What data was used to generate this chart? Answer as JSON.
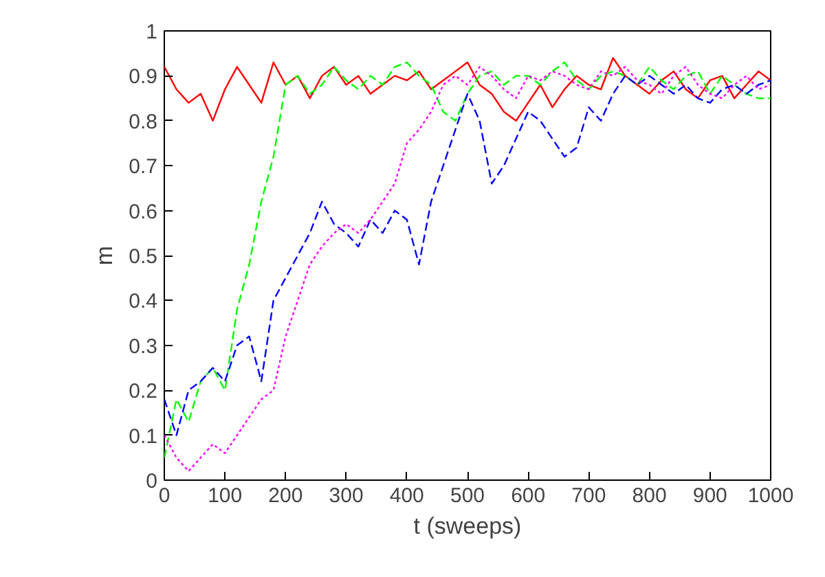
{
  "chart_data": {
    "type": "line",
    "xlabel": "t (sweeps)",
    "ylabel": "m",
    "x": [
      0,
      20,
      40,
      60,
      80,
      100,
      120,
      140,
      160,
      180,
      200,
      220,
      240,
      260,
      280,
      300,
      320,
      340,
      360,
      380,
      400,
      420,
      440,
      460,
      480,
      500,
      520,
      540,
      560,
      580,
      600,
      620,
      640,
      660,
      680,
      700,
      720,
      740,
      760,
      780,
      800,
      820,
      840,
      860,
      880,
      900,
      920,
      940,
      960,
      980,
      1000
    ],
    "series": [
      {
        "color": "#ff0000",
        "line_style": "solid",
        "values": [
          0.92,
          0.87,
          0.84,
          0.86,
          0.8,
          0.87,
          0.92,
          0.88,
          0.84,
          0.93,
          0.88,
          0.9,
          0.85,
          0.9,
          0.92,
          0.88,
          0.9,
          0.86,
          0.88,
          0.9,
          0.89,
          0.91,
          0.87,
          0.89,
          0.91,
          0.93,
          0.88,
          0.86,
          0.82,
          0.8,
          0.84,
          0.88,
          0.83,
          0.87,
          0.9,
          0.88,
          0.87,
          0.94,
          0.9,
          0.88,
          0.86,
          0.89,
          0.91,
          0.87,
          0.85,
          0.89,
          0.9,
          0.85,
          0.88,
          0.91,
          0.89
        ]
      },
      {
        "color": "#00ff00",
        "line_style": "dashed",
        "values": [
          0.05,
          0.18,
          0.13,
          0.22,
          0.25,
          0.2,
          0.38,
          0.48,
          0.62,
          0.72,
          0.88,
          0.9,
          0.86,
          0.88,
          0.92,
          0.89,
          0.87,
          0.9,
          0.88,
          0.92,
          0.93,
          0.9,
          0.88,
          0.82,
          0.8,
          0.86,
          0.9,
          0.91,
          0.88,
          0.9,
          0.9,
          0.88,
          0.91,
          0.93,
          0.89,
          0.87,
          0.9,
          0.91,
          0.9,
          0.88,
          0.92,
          0.89,
          0.87,
          0.9,
          0.91,
          0.86,
          0.9,
          0.88,
          0.86,
          0.85,
          0.85
        ]
      },
      {
        "color": "#0000ff",
        "line_style": "dashed",
        "values": [
          0.18,
          0.1,
          0.2,
          0.22,
          0.25,
          0.22,
          0.3,
          0.32,
          0.22,
          0.4,
          0.45,
          0.5,
          0.55,
          0.62,
          0.57,
          0.55,
          0.52,
          0.58,
          0.55,
          0.6,
          0.58,
          0.48,
          0.62,
          0.7,
          0.78,
          0.86,
          0.8,
          0.66,
          0.7,
          0.76,
          0.82,
          0.8,
          0.76,
          0.72,
          0.74,
          0.83,
          0.8,
          0.86,
          0.9,
          0.88,
          0.9,
          0.88,
          0.86,
          0.88,
          0.85,
          0.84,
          0.87,
          0.88,
          0.86,
          0.88,
          0.89
        ]
      },
      {
        "color": "#ff00ff",
        "line_style": "dotted",
        "values": [
          0.1,
          0.05,
          0.02,
          0.05,
          0.08,
          0.06,
          0.1,
          0.14,
          0.18,
          0.2,
          0.32,
          0.4,
          0.48,
          0.52,
          0.55,
          0.57,
          0.55,
          0.58,
          0.62,
          0.66,
          0.75,
          0.78,
          0.82,
          0.88,
          0.9,
          0.88,
          0.92,
          0.9,
          0.87,
          0.85,
          0.9,
          0.89,
          0.91,
          0.9,
          0.88,
          0.87,
          0.91,
          0.9,
          0.92,
          0.89,
          0.88,
          0.86,
          0.9,
          0.92,
          0.88,
          0.86,
          0.85,
          0.88,
          0.9,
          0.87,
          0.88
        ]
      }
    ],
    "xlim": [
      0,
      1000
    ],
    "xticks": [
      0,
      100,
      200,
      300,
      400,
      500,
      600,
      700,
      800,
      900,
      1000
    ],
    "ylim": [
      0,
      1
    ],
    "yticks": [
      0,
      0.1,
      0.2,
      0.3,
      0.4,
      0.5,
      0.6,
      0.7,
      0.8,
      0.9,
      1
    ]
  }
}
